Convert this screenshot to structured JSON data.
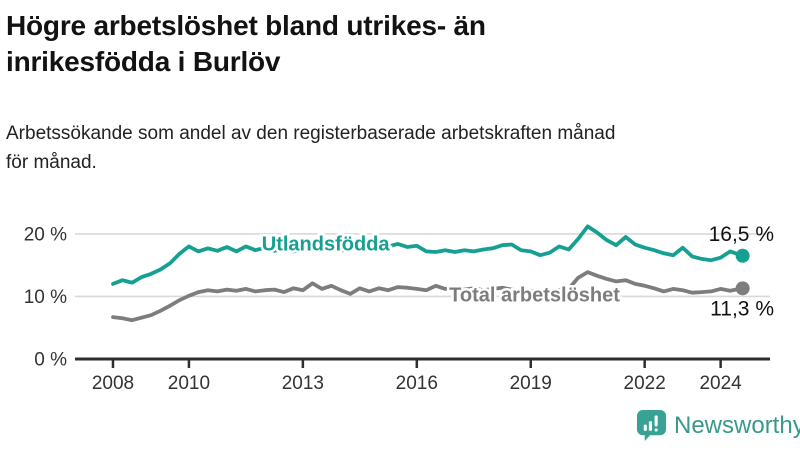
{
  "title": {
    "line1": "Högre arbetslöshet bland utrikes- än",
    "line2": "inrikesfödda i Burlöv"
  },
  "subtitle": {
    "line1": "Arbetssökande som andel av den registerbaserade arbetskraften månad",
    "line2": "för månad."
  },
  "brand": {
    "name": "Newsworthy",
    "icon": "bar-chart-speech-bubble-icon",
    "icon_color": "#3aa294",
    "wordmark_color": "#38998b"
  },
  "colors": {
    "background": "#ffffff",
    "title_text": "#121212",
    "body_text": "#222222",
    "axis_text": "#333333",
    "grid": "#d9d9d9",
    "axis_line": "#2e2e2e",
    "end_label_text": "#111111",
    "series_foreign_born": "#16a093",
    "series_total": "#7d7d7d"
  },
  "chart_data": {
    "type": "line",
    "unit": "percent of registered labour force",
    "grid": "horizontal-only",
    "xlim": [
      2007.0,
      2025.3
    ],
    "ylim": [
      0,
      23.5
    ],
    "yticks": [
      {
        "value": 0,
        "label": "0 %"
      },
      {
        "value": 10,
        "label": "10 %"
      },
      {
        "value": 20,
        "label": "20 %"
      }
    ],
    "xticks": [
      {
        "value": 2008,
        "label": "2008"
      },
      {
        "value": 2010,
        "label": "2010"
      },
      {
        "value": 2013,
        "label": "2013"
      },
      {
        "value": 2016,
        "label": "2016"
      },
      {
        "value": 2019,
        "label": "2019"
      },
      {
        "value": 2022,
        "label": "2022"
      },
      {
        "value": 2024,
        "label": "2024"
      }
    ],
    "x_years": [
      2008,
      2008.25,
      2008.5,
      2008.75,
      2009,
      2009.25,
      2009.5,
      2009.75,
      2010,
      2010.25,
      2010.5,
      2010.75,
      2011,
      2011.25,
      2011.5,
      2011.75,
      2012,
      2012.25,
      2012.5,
      2012.75,
      2013,
      2013.25,
      2013.5,
      2013.75,
      2014,
      2014.25,
      2014.5,
      2014.75,
      2015,
      2015.25,
      2015.5,
      2015.75,
      2016,
      2016.25,
      2016.5,
      2016.75,
      2017,
      2017.25,
      2017.5,
      2017.75,
      2018,
      2018.25,
      2018.5,
      2018.75,
      2019,
      2019.25,
      2019.5,
      2019.75,
      2020,
      2020.25,
      2020.5,
      2020.75,
      2021,
      2021.25,
      2021.5,
      2021.75,
      2022,
      2022.25,
      2022.5,
      2022.75,
      2023,
      2023.25,
      2023.5,
      2023.75,
      2024,
      2024.25,
      2024.58
    ],
    "series": [
      {
        "name": "Utlandsfödda",
        "color": "#16a093",
        "end_value": 16.5,
        "end_label": "16,5 %",
        "label_pos": {
          "x": 2013.6,
          "y": 18.5
        },
        "values": [
          12.0,
          12.6,
          12.2,
          13.1,
          13.6,
          14.3,
          15.3,
          16.8,
          18.0,
          17.2,
          17.7,
          17.3,
          17.9,
          17.2,
          18.0,
          17.4,
          17.8,
          17.3,
          17.6,
          17.2,
          17.5,
          17.8,
          17.4,
          17.7,
          17.3,
          17.6,
          17.9,
          17.5,
          17.7,
          18.0,
          18.4,
          17.9,
          18.1,
          17.2,
          17.1,
          17.4,
          17.1,
          17.4,
          17.2,
          17.5,
          17.7,
          18.2,
          18.3,
          17.4,
          17.2,
          16.6,
          17.0,
          18.0,
          17.5,
          19.2,
          21.2,
          20.2,
          19.0,
          18.2,
          19.5,
          18.3,
          17.8,
          17.4,
          16.9,
          16.6,
          17.8,
          16.4,
          16.0,
          15.8,
          16.2,
          17.2,
          16.5
        ]
      },
      {
        "name": "Total arbetslöshet",
        "color": "#7d7d7d",
        "end_value": 11.3,
        "end_label": "11,3 %",
        "label_pos": {
          "x": 2019.1,
          "y": 10.3
        },
        "values": [
          6.7,
          6.5,
          6.2,
          6.6,
          7.0,
          7.7,
          8.5,
          9.4,
          10.1,
          10.7,
          11.0,
          10.8,
          11.1,
          10.9,
          11.2,
          10.8,
          11.0,
          11.1,
          10.7,
          11.3,
          11.0,
          12.1,
          11.2,
          11.7,
          11.0,
          10.4,
          11.3,
          10.8,
          11.3,
          11.0,
          11.5,
          11.4,
          11.2,
          11.0,
          11.7,
          11.2,
          11.4,
          11.1,
          11.3,
          11.0,
          11.2,
          11.4,
          11.1,
          10.9,
          10.8,
          10.6,
          10.9,
          11.0,
          11.2,
          13.0,
          13.9,
          13.3,
          12.8,
          12.4,
          12.6,
          12.0,
          11.7,
          11.3,
          10.8,
          11.2,
          11.0,
          10.6,
          10.7,
          10.8,
          11.2,
          10.9,
          11.3
        ]
      }
    ]
  }
}
